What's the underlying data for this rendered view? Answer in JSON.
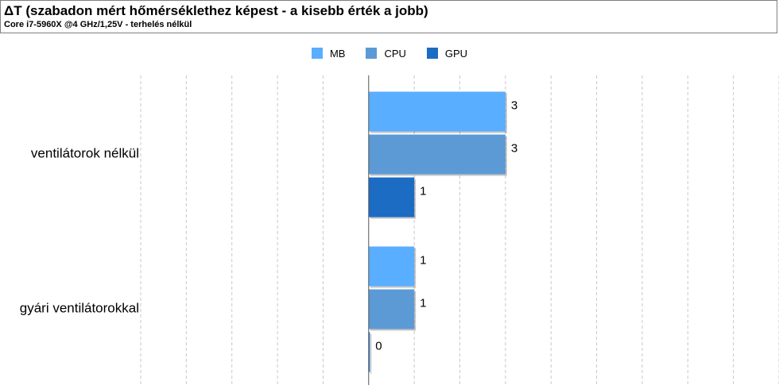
{
  "header": {
    "title": "ΔT (szabadon mért hőmérséklethez képest - a kisebb érték a jobb)",
    "subtitle": "Core i7-5960X @4 GHz/1,25V - terhelés nélkül"
  },
  "chart_data": {
    "type": "bar",
    "orientation": "horizontal",
    "title": "ΔT (szabadon mért hőmérséklethez képest - a kisebb érték a jobb)",
    "subtitle": "Core i7-5960X @4 GHz/1,25V - terhelés nélkül",
    "categories": [
      "ventilátorok nélkül",
      "gyári ventilátorokkal"
    ],
    "series": [
      {
        "name": "MB",
        "color": "#5aaeff",
        "values": [
          3,
          1
        ],
        "labels": [
          "3",
          "1"
        ]
      },
      {
        "name": "CPU",
        "color": "#5c9ad5",
        "values": [
          3,
          1
        ],
        "labels": [
          "3",
          "1"
        ]
      },
      {
        "name": "GPU",
        "color": "#1c6cc4",
        "values": [
          1,
          0
        ],
        "labels": [
          "1",
          "0"
        ]
      }
    ],
    "xlim": [
      -5,
      9
    ],
    "grid": true,
    "legend": "top-center"
  }
}
